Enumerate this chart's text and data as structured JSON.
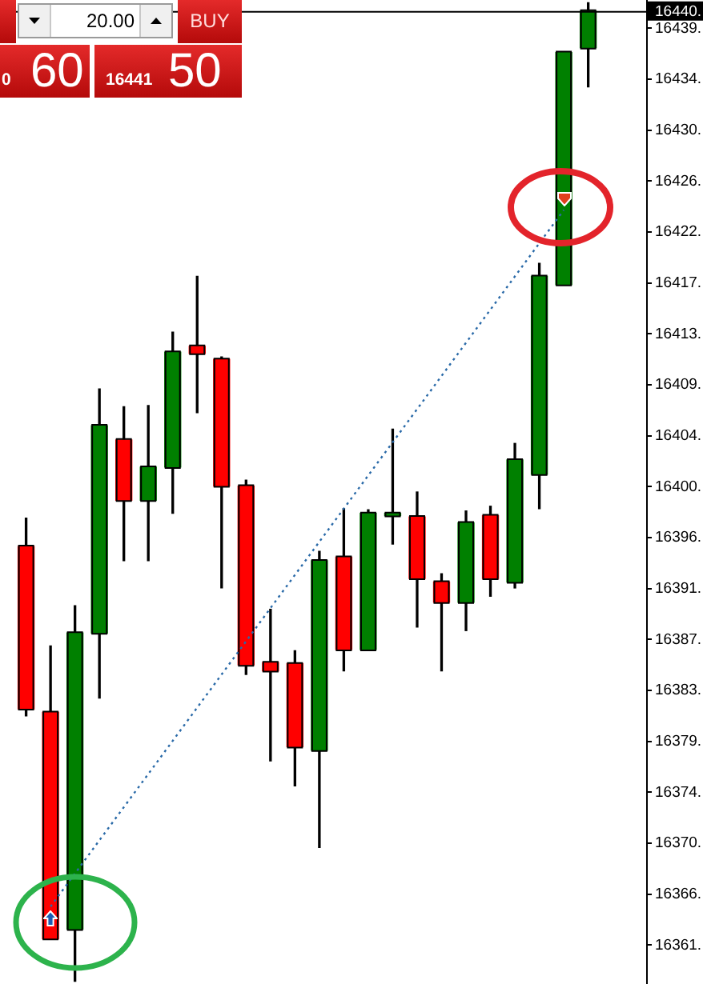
{
  "chart_data": {
    "type": "candlestick",
    "categories": [
      null,
      null,
      null,
      null,
      null,
      null,
      null,
      null,
      null,
      null,
      null,
      null,
      null,
      null,
      null,
      null,
      null,
      null,
      null,
      null,
      null,
      null,
      null,
      null
    ],
    "ohlc": [
      [
        16395.0,
        16397.4,
        16380.7,
        16381.3
      ],
      [
        16381.0,
        16386.6,
        16361.9,
        16361.9
      ],
      [
        16362.7,
        16390.0,
        16358.3,
        16387.7
      ],
      [
        16387.7,
        16408.3,
        16382.2,
        16405.2
      ],
      [
        16404.0,
        16406.8,
        16393.8,
        16398.9
      ],
      [
        16398.9,
        16406.9,
        16393.8,
        16401.7
      ],
      [
        16401.7,
        16413.1,
        16397.8,
        16411.4
      ],
      [
        16411.9,
        16417.8,
        16406.3,
        16411.3
      ],
      [
        16410.8,
        16411.0,
        16391.5,
        16400.1
      ],
      [
        16400.1,
        16400.6,
        16384.2,
        16385.0
      ],
      [
        16385.2,
        16389.7,
        16376.9,
        16384.5
      ],
      [
        16385.1,
        16386.2,
        16374.8,
        16378.1
      ],
      [
        16377.8,
        16394.6,
        16369.6,
        16393.8
      ],
      [
        16394.1,
        16398.2,
        16384.5,
        16386.3
      ],
      [
        16386.3,
        16398.1,
        16386.3,
        16397.8
      ],
      [
        16397.6,
        16404.9,
        16395.2,
        16397.8
      ],
      [
        16397.5,
        16399.6,
        16388.2,
        16392.3
      ],
      [
        16392.0,
        16392.7,
        16384.5,
        16390.3
      ],
      [
        16390.3,
        16398.0,
        16387.9,
        16397.0
      ],
      [
        16397.6,
        16398.4,
        16390.8,
        16392.3
      ],
      [
        16392.0,
        16403.7,
        16391.5,
        16402.3
      ],
      [
        16401.1,
        16418.9,
        16398.2,
        16417.8
      ],
      [
        16417.1,
        16436.7,
        16417.1,
        16436.7
      ],
      [
        16437.1,
        16440.9,
        16433.8,
        16440.2
      ]
    ],
    "colors": [
      "#ff0000",
      "#ff0000",
      "#008000",
      "#008000",
      "#ff0000",
      "#008000",
      "#008000",
      "#ff0000",
      "#ff0000",
      "#ff0000",
      "#ff0000",
      "#ff0000",
      "#008000",
      "#ff0000",
      "#008000",
      "#008000",
      "#ff0000",
      "#ff0000",
      "#008000",
      "#ff0000",
      "#008000",
      "#008000",
      "#008000",
      "#008000"
    ],
    "series": [
      {
        "type": "line",
        "color": "#2a6aa8",
        "line_style": "dotted",
        "marker": "none",
        "values": [
          null,
          16364.6,
          null,
          null,
          null,
          null,
          null,
          null,
          null,
          null,
          null,
          null,
          null,
          null,
          null,
          null,
          null,
          null,
          null,
          null,
          null,
          null,
          16423.4,
          null
        ]
      }
    ],
    "ylim": [
      16358.15,
      16441.05
    ],
    "yticks": [
      {
        "value": 16438.75,
        "label": "16439."
      },
      {
        "value": 16434.45,
        "label": "16434."
      },
      {
        "value": 16430.15,
        "label": "16430."
      },
      {
        "value": 16425.85,
        "label": "16426."
      },
      {
        "value": 16421.55,
        "label": "16422."
      },
      {
        "value": 16417.25,
        "label": "16417."
      },
      {
        "value": 16412.95,
        "label": "16413."
      },
      {
        "value": 16408.65,
        "label": "16409."
      },
      {
        "value": 16404.35,
        "label": "16404."
      },
      {
        "value": 16400.05,
        "label": "16400."
      },
      {
        "value": 16395.75,
        "label": "16396."
      },
      {
        "value": 16391.45,
        "label": "16391."
      },
      {
        "value": 16387.15,
        "label": "16387."
      },
      {
        "value": 16382.85,
        "label": "16383."
      },
      {
        "value": 16378.55,
        "label": "16379."
      },
      {
        "value": 16374.25,
        "label": "16374."
      },
      {
        "value": 16369.95,
        "label": "16370."
      },
      {
        "value": 16365.65,
        "label": "16366."
      },
      {
        "value": 16361.35,
        "label": "16361."
      }
    ],
    "ref_lines": [
      {
        "axis": "y",
        "value": 16440.2,
        "label": "16440."
      }
    ],
    "annotations": [
      "20.00",
      "BUY",
      "0",
      "60",
      "16441",
      "50"
    ],
    "tick_labels": "y"
  }
}
